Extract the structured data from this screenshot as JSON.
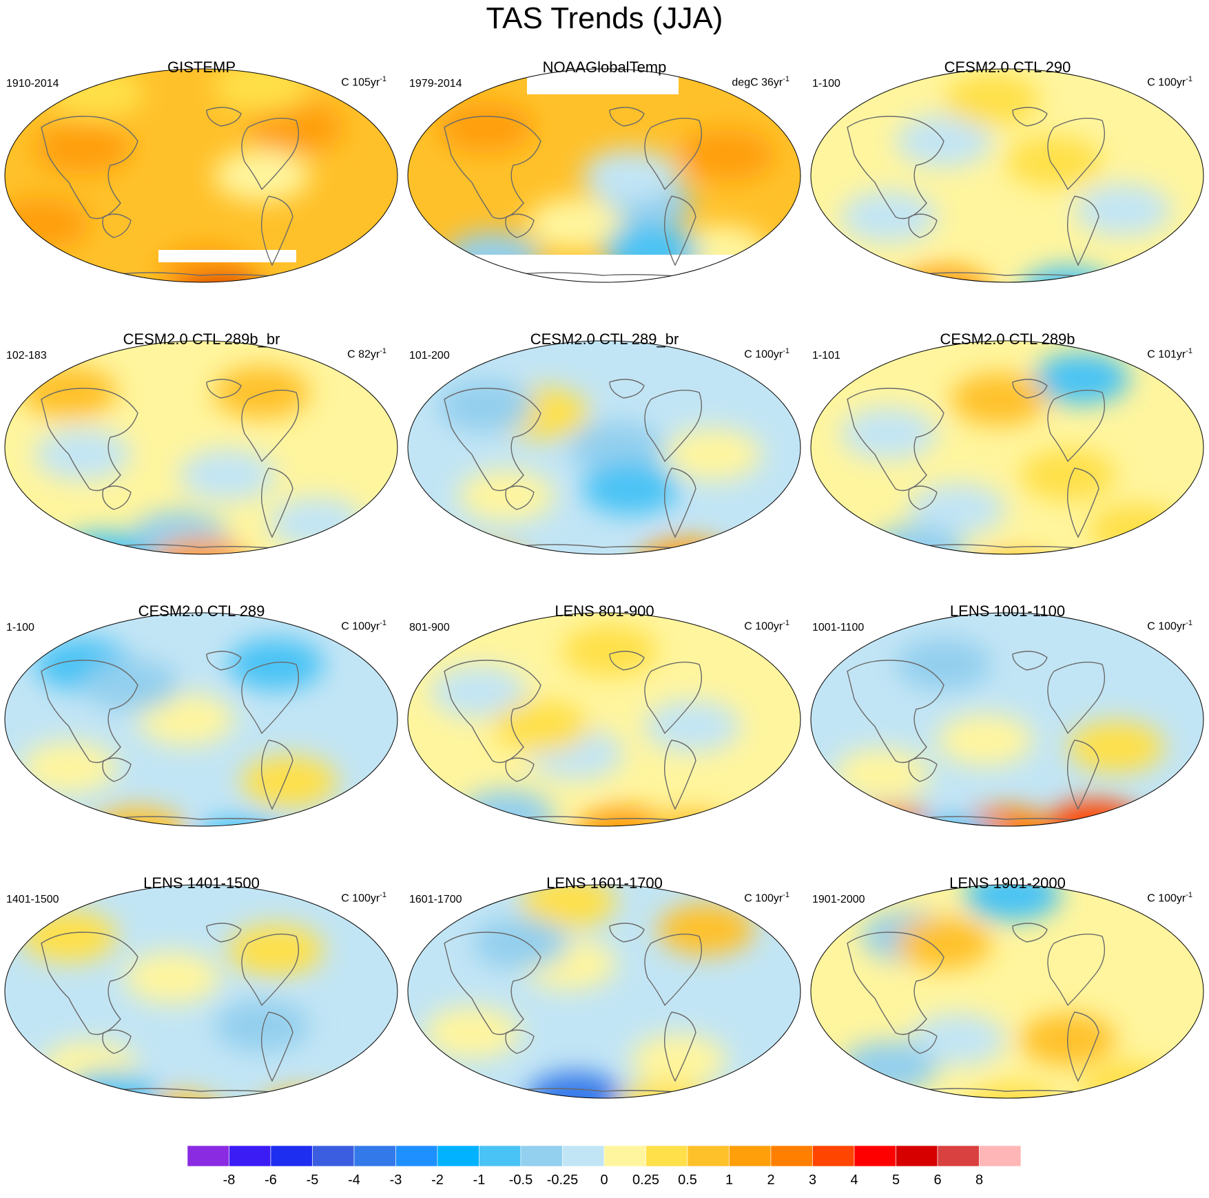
{
  "title": "TAS Trends (JJA)",
  "colors": {
    "coast": "#6a6a6a",
    "palette": [
      "#8a2be2",
      "#3c1cf5",
      "#1e2ef0",
      "#3b5ee0",
      "#3479ea",
      "#1e90ff",
      "#00b2ff",
      "#49c3f5",
      "#93cfee",
      "#c2e5f5",
      "#fff59e",
      "#ffe04a",
      "#ffc12a",
      "#ff9f0a",
      "#ff7f00",
      "#ff4500",
      "#ff0000",
      "#d60000",
      "#d94040",
      "#ffb6b6"
    ]
  },
  "panels": [
    {
      "title": "GISTEMP",
      "period": "1910-2014",
      "units_base": "C 105yr",
      "units_exp": "-1",
      "base_color": "#ffc12a",
      "blobs": [
        [
          "#ff9f0a",
          120,
          150
        ],
        [
          "#ff9f0a",
          430,
          120
        ],
        [
          "#ffe04a",
          140,
          70
        ],
        [
          "#ffe04a",
          380,
          60
        ],
        [
          "#ff9f0a",
          300,
          330
        ],
        [
          "#d60000",
          320,
          375
        ],
        [
          "#fff59e",
          380,
          190
        ],
        [
          "#ff9f0a",
          60,
          260
        ]
      ]
    },
    {
      "title": "NOAAGlobalTemp",
      "period": "1979-2014",
      "units_base": "degC 36yr",
      "units_exp": "-1",
      "base_color": "#ffc12a",
      "blobs": [
        [
          "#93cfee",
          350,
          230
        ],
        [
          "#c2e5f5",
          330,
          190
        ],
        [
          "#fff59e",
          250,
          260
        ],
        [
          "#ff9f0a",
          120,
          120
        ],
        [
          "#ff9f0a",
          470,
          160
        ],
        [
          "#93cfee",
          130,
          310
        ],
        [
          "#fff59e",
          460,
          300
        ],
        [
          "#49c3f5",
          360,
          300
        ]
      ]
    },
    {
      "title": "CESM2.0 CTL 290",
      "period": "1-100",
      "units_base": "C 100yr",
      "units_exp": "-1",
      "base_color": "#fff59e",
      "blobs": [
        [
          "#c2e5f5",
          200,
          140
        ],
        [
          "#c2e5f5",
          460,
          240
        ],
        [
          "#ffe04a",
          270,
          80
        ],
        [
          "#49c3f5",
          380,
          360
        ],
        [
          "#ff9f0a",
          200,
          360
        ],
        [
          "#ffc12a",
          100,
          380
        ],
        [
          "#c2e5f5",
          120,
          250
        ],
        [
          "#ffe04a",
          360,
          170
        ]
      ]
    },
    {
      "title": "CESM2.0 CTL 289b_br",
      "period": "102-183",
      "units_base": "C 82yr",
      "units_exp": "-1",
      "base_color": "#fff59e",
      "blobs": [
        [
          "#c2e5f5",
          120,
          200
        ],
        [
          "#c2e5f5",
          330,
          230
        ],
        [
          "#ffc12a",
          100,
          110
        ],
        [
          "#ffc12a",
          380,
          110
        ],
        [
          "#93cfee",
          260,
          320
        ],
        [
          "#ff9f0a",
          290,
          360
        ],
        [
          "#49c3f5",
          150,
          350
        ],
        [
          "#c2e5f5",
          460,
          300
        ]
      ]
    },
    {
      "title": "CESM2.0 CTL 289_br",
      "period": "101-200",
      "units_base": "C 100yr",
      "units_exp": "-1",
      "base_color": "#c2e5f5",
      "blobs": [
        [
          "#93cfee",
          310,
          190
        ],
        [
          "#49c3f5",
          330,
          250
        ],
        [
          "#fff59e",
          150,
          260
        ],
        [
          "#ffe04a",
          200,
          140
        ],
        [
          "#ff9f0a",
          410,
          360
        ],
        [
          "#ffc12a",
          120,
          370
        ],
        [
          "#fff59e",
          450,
          200
        ],
        [
          "#93cfee",
          120,
          130
        ]
      ]
    },
    {
      "title": "CESM2.0 CTL 289b",
      "period": "1-101",
      "units_base": "C 101yr",
      "units_exp": "-1",
      "base_color": "#fff59e",
      "blobs": [
        [
          "#49c3f5",
          400,
          90
        ],
        [
          "#c2e5f5",
          120,
          170
        ],
        [
          "#ffc12a",
          280,
          120
        ],
        [
          "#ffe04a",
          380,
          230
        ],
        [
          "#c2e5f5",
          220,
          280
        ],
        [
          "#ffc12a",
          300,
          380
        ],
        [
          "#93cfee",
          160,
          340
        ],
        [
          "#ffe04a",
          480,
          310
        ]
      ]
    },
    {
      "title": "CESM2.0 CTL 289",
      "period": "1-100",
      "units_base": "C 100yr",
      "units_exp": "-1",
      "base_color": "#c2e5f5",
      "blobs": [
        [
          "#49c3f5",
          120,
          110
        ],
        [
          "#49c3f5",
          400,
          110
        ],
        [
          "#fff59e",
          270,
          190
        ],
        [
          "#fff59e",
          100,
          260
        ],
        [
          "#ffe04a",
          420,
          280
        ],
        [
          "#ffc12a",
          200,
          355
        ],
        [
          "#49c3f5",
          350,
          370
        ],
        [
          "#93cfee",
          190,
          140
        ]
      ]
    },
    {
      "title": "LENS 801-900",
      "period": "801-900",
      "units_base": "C 100yr",
      "units_exp": "-1",
      "base_color": "#fff59e",
      "blobs": [
        [
          "#c2e5f5",
          250,
          240
        ],
        [
          "#c2e5f5",
          420,
          200
        ],
        [
          "#ffe04a",
          300,
          90
        ],
        [
          "#ff9f0a",
          320,
          355
        ],
        [
          "#ffc12a",
          420,
          360
        ],
        [
          "#93cfee",
          150,
          330
        ],
        [
          "#c2e5f5",
          110,
          150
        ],
        [
          "#ffe04a",
          200,
          200
        ]
      ]
    },
    {
      "title": "LENS 1001-1100",
      "period": "1001-1100",
      "units_base": "C 100yr",
      "units_exp": "-1",
      "base_color": "#c2e5f5",
      "blobs": [
        [
          "#fff59e",
          260,
          220
        ],
        [
          "#fff59e",
          110,
          270
        ],
        [
          "#93cfee",
          200,
          110
        ],
        [
          "#ff7f00",
          130,
          355
        ],
        [
          "#ff7f00",
          290,
          355
        ],
        [
          "#ff4500",
          420,
          345
        ],
        [
          "#49c3f5",
          210,
          370
        ],
        [
          "#ffe04a",
          450,
          230
        ]
      ]
    },
    {
      "title": "LENS 1401-1500",
      "period": "1401-1500",
      "units_base": "C 100yr",
      "units_exp": "-1",
      "base_color": "#c2e5f5",
      "blobs": [
        [
          "#fff59e",
          250,
          170
        ],
        [
          "#fff59e",
          130,
          300
        ],
        [
          "#ffc12a",
          260,
          375
        ],
        [
          "#ffe04a",
          100,
          110
        ],
        [
          "#ffe04a",
          400,
          130
        ],
        [
          "#49c3f5",
          160,
          345
        ],
        [
          "#ffc12a",
          440,
          370
        ],
        [
          "#93cfee",
          380,
          240
        ]
      ]
    },
    {
      "title": "LENS 1601-1700",
      "period": "1601-1700",
      "units_base": "C 100yr",
      "units_exp": "-1",
      "base_color": "#c2e5f5",
      "blobs": [
        [
          "#fff59e",
          240,
          150
        ],
        [
          "#fff59e",
          400,
          290
        ],
        [
          "#ffe04a",
          240,
          60
        ],
        [
          "#93cfee",
          170,
          120
        ],
        [
          "#3479ea",
          250,
          345
        ],
        [
          "#ffe04a",
          380,
          360
        ],
        [
          "#fff59e",
          100,
          250
        ],
        [
          "#ffc12a",
          440,
          100
        ]
      ]
    },
    {
      "title": "LENS 1901-2000",
      "period": "1901-2000",
      "units_base": "C 100yr",
      "units_exp": "-1",
      "base_color": "#fff59e",
      "blobs": [
        [
          "#49c3f5",
          300,
          50
        ],
        [
          "#93cfee",
          150,
          110
        ],
        [
          "#ffc12a",
          200,
          120
        ],
        [
          "#c2e5f5",
          220,
          260
        ],
        [
          "#ffc12a",
          380,
          260
        ],
        [
          "#ffe04a",
          300,
          360
        ],
        [
          "#93cfee",
          120,
          300
        ],
        [
          "#ffe04a",
          470,
          330
        ]
      ]
    }
  ],
  "colorbar": {
    "labels": [
      "-8",
      "-6",
      "-5",
      "-4",
      "-3",
      "-2",
      "-1",
      "-0.5",
      "-0.25",
      "0",
      "0.25",
      "0.5",
      "1",
      "2",
      "3",
      "4",
      "5",
      "6",
      "8"
    ]
  }
}
